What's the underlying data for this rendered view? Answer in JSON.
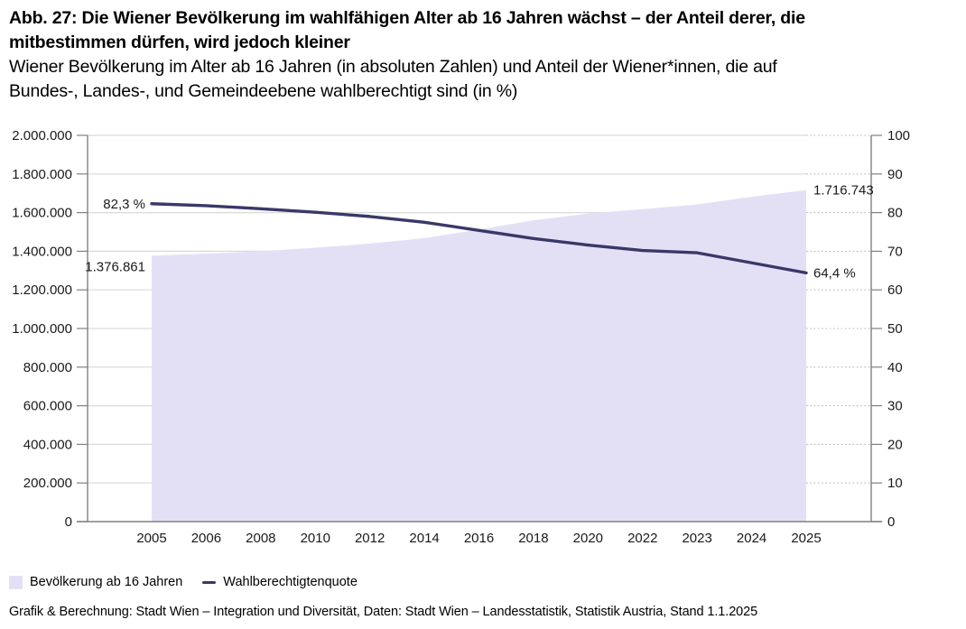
{
  "header": {
    "title": "Abb. 27: Die Wiener Bevölkerung im wahlfähigen Alter ab 16 Jahren wächst – der Anteil derer, die mitbestimmen dürfen, wird jedoch kleiner",
    "subtitle": "Wiener Bevölkerung im Alter ab 16 Jahren (in absoluten Zahlen) und Anteil der Wiener*innen, die auf Bundes-, Landes-, und Gemeindeebene wahlberechtigt sind (in %)"
  },
  "chart_data": {
    "type": "area",
    "categories": [
      "2005",
      "2006",
      "2008",
      "2010",
      "2012",
      "2014",
      "2016",
      "2018",
      "2020",
      "2022",
      "2023",
      "2024",
      "2025"
    ],
    "series": [
      {
        "name": "Bevölkerung ab 16 Jahren",
        "type": "area",
        "axis": "left",
        "color": "#e3e0f6",
        "values": [
          1376861,
          1388000,
          1400000,
          1418000,
          1440000,
          1468000,
          1512000,
          1560000,
          1595000,
          1618000,
          1642000,
          1682000,
          1716743
        ]
      },
      {
        "name": "Wahlberechtigtenquote",
        "type": "line",
        "axis": "right",
        "color": "#3a3869",
        "values": [
          82.3,
          81.8,
          81.0,
          80.1,
          79.0,
          77.5,
          75.4,
          73.3,
          71.6,
          70.2,
          69.6,
          67.0,
          64.4
        ]
      }
    ],
    "left_axis": {
      "min": 0,
      "max": 2000000,
      "step": 200000,
      "tick_labels": [
        "0",
        "200.000",
        "400.000",
        "600.000",
        "800.000",
        "1.000.000",
        "1.200.000",
        "1.400.000",
        "1.600.000",
        "1.800.000",
        "2.000.000"
      ]
    },
    "right_axis": {
      "min": 0,
      "max": 100,
      "step": 10,
      "tick_labels": [
        "0",
        "10",
        "20",
        "30",
        "40",
        "50",
        "60",
        "70",
        "80",
        "90",
        "100"
      ]
    },
    "grid": true,
    "legend_position": "bottom",
    "annotations": [
      {
        "text": "82,3 %",
        "anchor": "line-start"
      },
      {
        "text": "1.376.861",
        "anchor": "area-start"
      },
      {
        "text": "1.716.743",
        "anchor": "area-end"
      },
      {
        "text": "64,4 %",
        "anchor": "line-end"
      }
    ]
  },
  "legend": {
    "items": [
      {
        "label": "Bevölkerung ab 16 Jahren",
        "swatch": "area"
      },
      {
        "label": "Wahlberechtigtenquote",
        "swatch": "line"
      }
    ]
  },
  "footer": {
    "source": "Grafik & Berechnung: Stadt Wien – Integration und Diversität, Daten: Stadt Wien – Landesstatistik, Statistik Austria, Stand 1.1.2025"
  },
  "colors": {
    "area_fill": "#e3e0f6",
    "line": "#3a3869",
    "gridline": "#d9d9d9",
    "gridline_dotted": "#b3b3b3",
    "axis": "#808080",
    "text": "#1a1a1a"
  }
}
